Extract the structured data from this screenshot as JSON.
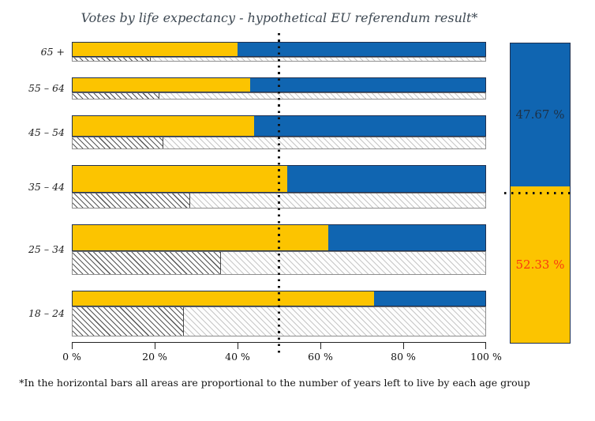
{
  "title": "Votes by life expectancy - hypothetical EU referendum result*",
  "footnote": "*In the horizontal bars all areas are proportional to the number of years left to live by each age group",
  "colors": {
    "yellow": "#fcc400",
    "blue": "#1065b1",
    "red": "#fa3a10",
    "navy_text": "#1d3147",
    "title_color": "#3d4852"
  },
  "chart_data": {
    "type": "bar",
    "orientation": "horizontal",
    "title": "Votes by life expectancy - hypothetical EU referendum result*",
    "categories": [
      "65 +",
      "55 – 64",
      "45 – 54",
      "35 – 44",
      "25 – 34",
      "18 – 24"
    ],
    "series": [
      {
        "name": "yellow-share-pct",
        "values": [
          40,
          43,
          44,
          52,
          62,
          73
        ]
      },
      {
        "name": "blue-share-pct",
        "values": [
          60,
          57,
          56,
          48,
          38,
          27
        ]
      }
    ],
    "rows": [
      {
        "label": "65 +",
        "yellow_pct": 40,
        "blue_pct": 60,
        "vote_bar_h": 19,
        "years_bar_h": 6,
        "hatch_split_pct": 19
      },
      {
        "label": "55 – 64",
        "yellow_pct": 43,
        "blue_pct": 57,
        "vote_bar_h": 19,
        "years_bar_h": 8.5,
        "hatch_split_pct": 21
      },
      {
        "label": "45 – 54",
        "yellow_pct": 44,
        "blue_pct": 56,
        "vote_bar_h": 27.5,
        "years_bar_h": 16,
        "hatch_split_pct": 22
      },
      {
        "label": "35 – 44",
        "yellow_pct": 52,
        "blue_pct": 48,
        "vote_bar_h": 35,
        "years_bar_h": 20,
        "hatch_split_pct": 28.5
      },
      {
        "label": "25 – 34",
        "yellow_pct": 62,
        "blue_pct": 38,
        "vote_bar_h": 33.5,
        "years_bar_h": 30,
        "hatch_split_pct": 36
      },
      {
        "label": "18 – 24",
        "yellow_pct": 73,
        "blue_pct": 27,
        "vote_bar_h": 20,
        "years_bar_h": 38.5,
        "hatch_split_pct": 27
      }
    ],
    "x_axis": {
      "ticks": [
        "0 %",
        "20 %",
        "40 %",
        "60 %",
        "80 %",
        "100 %"
      ],
      "range": [
        0,
        100
      ]
    },
    "reference_line_pct": 50,
    "total_bar": {
      "blue_pct": 47.67,
      "yellow_pct": 52.33,
      "blue_label": "47.67 %",
      "yellow_label": "52.33 %",
      "reference_line_pct": 50
    },
    "legend": "none",
    "grid": false
  }
}
